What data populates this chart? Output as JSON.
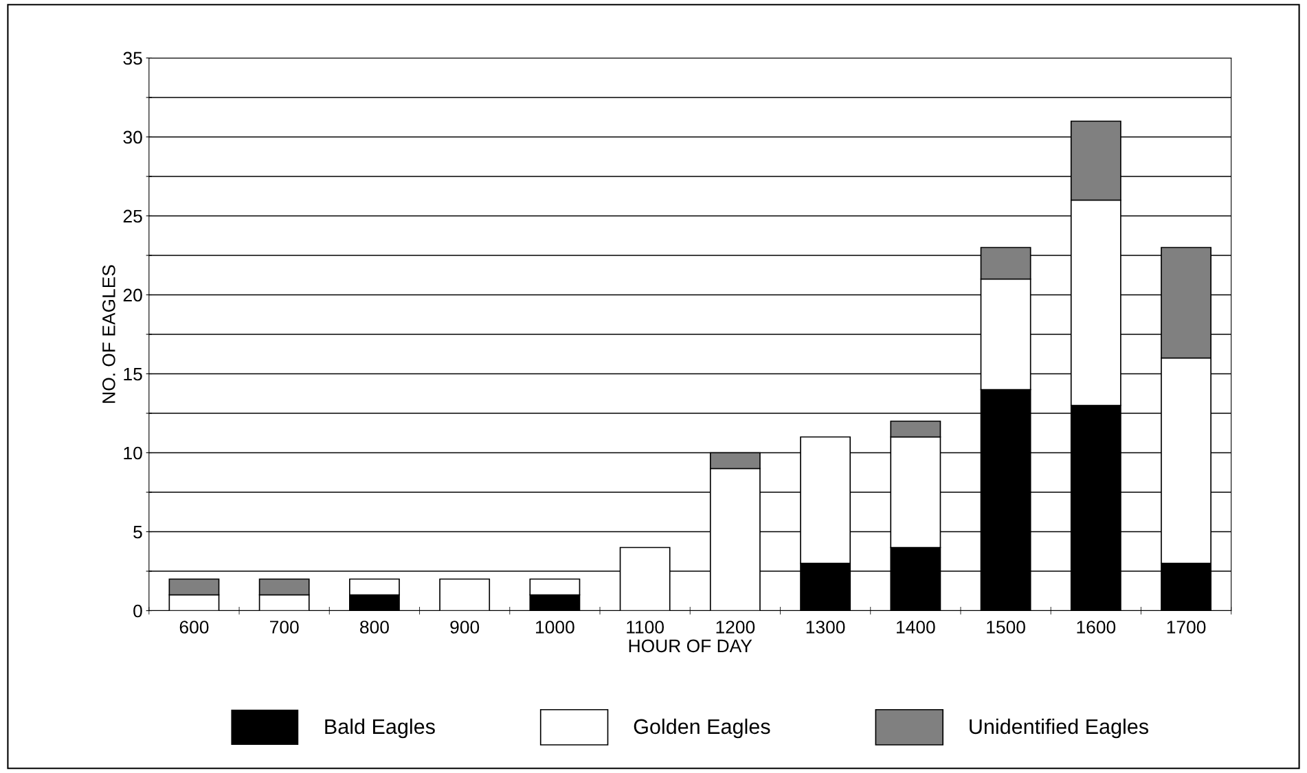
{
  "chart_data": {
    "type": "bar",
    "stacked": true,
    "xlabel": "HOUR OF DAY",
    "ylabel": "NO. OF EAGLES",
    "categories": [
      "600",
      "700",
      "800",
      "900",
      "1000",
      "1100",
      "1200",
      "1300",
      "1400",
      "1500",
      "1600",
      "1700"
    ],
    "series": [
      {
        "name": "Bald Eagles",
        "color": "#000000",
        "values": [
          0,
          0,
          1,
          0,
          1,
          0,
          0,
          3,
          4,
          14,
          13,
          3
        ]
      },
      {
        "name": "Golden Eagles",
        "color": "#ffffff",
        "values": [
          1,
          1,
          1,
          2,
          1,
          4,
          9,
          8,
          7,
          7,
          13,
          13
        ]
      },
      {
        "name": "Unidentified Eagles",
        "color": "#808080",
        "values": [
          1,
          1,
          0,
          0,
          0,
          0,
          1,
          0,
          1,
          2,
          5,
          7
        ]
      }
    ],
    "ylim": [
      0,
      35
    ],
    "yticks": [
      0,
      {
        "value": 2.5,
        "label": null
      },
      5,
      {
        "value": 7.5,
        "label": null
      },
      10,
      {
        "value": 12.5,
        "label": null
      },
      15,
      {
        "value": 17.5,
        "label": null
      },
      20,
      {
        "value": 22.5,
        "label": null
      },
      25,
      {
        "value": 27.5,
        "label": null
      },
      30,
      {
        "value": 32.5,
        "label": null
      },
      35
    ],
    "grid": "y",
    "legend": "bottom"
  }
}
